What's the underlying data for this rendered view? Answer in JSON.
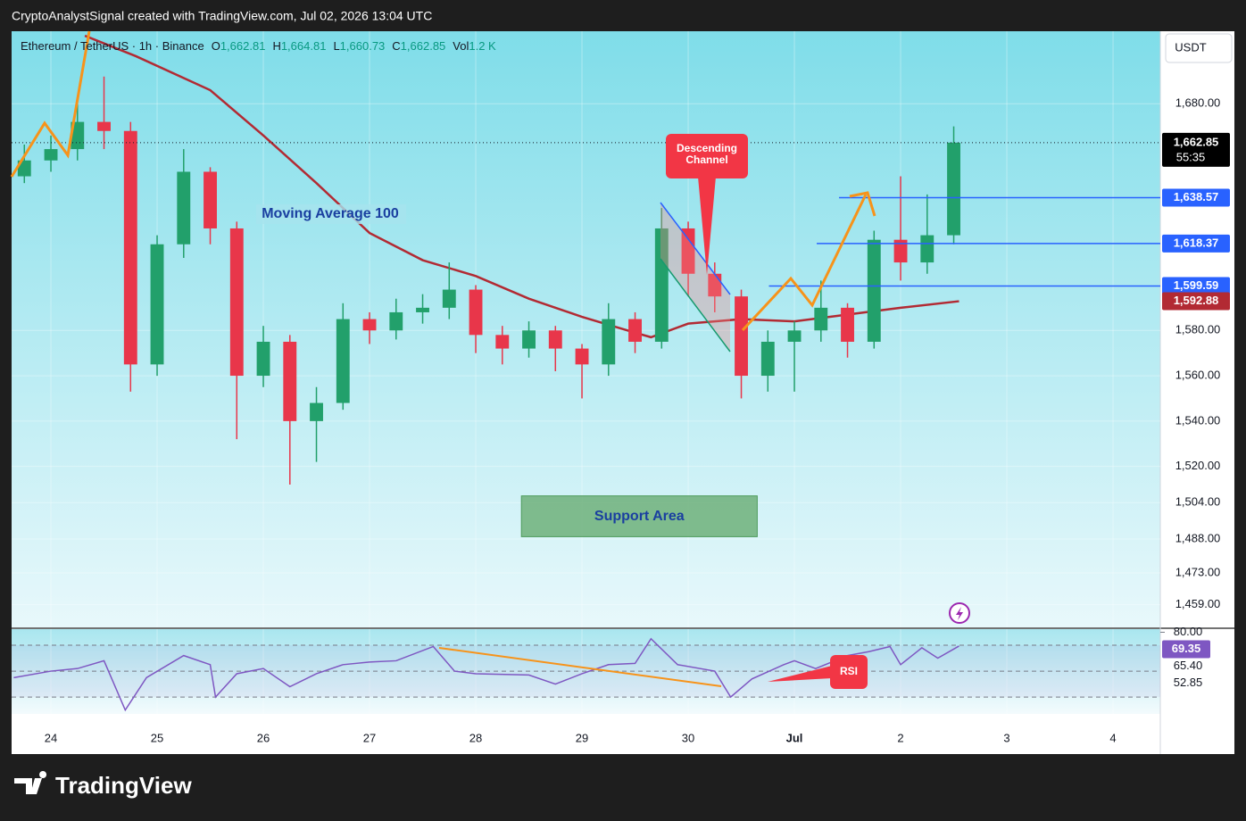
{
  "header": "CryptoAnalystSignal created with TradingView.com, Jul 02, 2026 13:04 UTC",
  "currency_button": "USDT",
  "brand": "TradingView",
  "chart_data": {
    "type": "candlestick",
    "legend": {
      "symbol": "Ethereum / TetherUS · 1h · Binance",
      "fields": [
        {
          "key": "O",
          "value": "1,662.81"
        },
        {
          "key": "H",
          "value": "1,664.81"
        },
        {
          "key": "L",
          "value": "1,660.73"
        },
        {
          "key": "C",
          "value": "1,662.85"
        },
        {
          "key": "Vol",
          "value": "1.2 K"
        }
      ]
    },
    "x": [
      -0.25,
      0,
      0.25,
      0.5,
      0.75,
      1,
      1.25,
      1.5,
      1.75,
      2,
      2.25,
      2.5,
      2.75,
      3,
      3.25,
      3.5,
      3.75,
      4,
      4.25,
      4.5,
      4.75,
      5,
      5.25,
      5.5,
      5.75,
      6,
      6.25,
      6.5,
      6.75,
      7,
      7.25,
      7.5,
      7.75,
      8,
      8.25,
      8.5
    ],
    "open": [
      1648,
      1655,
      1660,
      1672,
      1668,
      1565,
      1618,
      1650,
      1625,
      1560,
      1575,
      1540,
      1548,
      1585,
      1580,
      1588,
      1590,
      1598,
      1578,
      1572,
      1580,
      1572,
      1565,
      1585,
      1575,
      1625,
      1605,
      1595,
      1560,
      1575,
      1580,
      1590,
      1575,
      1620,
      1610,
      1622
    ],
    "high": [
      1662,
      1666,
      1680,
      1692,
      1672,
      1622,
      1660,
      1652,
      1628,
      1582,
      1578,
      1555,
      1592,
      1588,
      1594,
      1596,
      1610,
      1600,
      1582,
      1584,
      1582,
      1574,
      1592,
      1588,
      1634,
      1628,
      1610,
      1598,
      1580,
      1584,
      1602,
      1592,
      1624,
      1648,
      1640,
      1670
    ],
    "low": [
      1645,
      1650,
      1655,
      1660,
      1553,
      1560,
      1612,
      1618,
      1532,
      1555,
      1512,
      1522,
      1545,
      1574,
      1576,
      1583,
      1585,
      1570,
      1565,
      1568,
      1562,
      1550,
      1560,
      1570,
      1572,
      1595,
      1588,
      1550,
      1553,
      1553,
      1575,
      1568,
      1572,
      1602,
      1605,
      1618
    ],
    "close": [
      1655,
      1660,
      1672,
      1668,
      1565,
      1618,
      1650,
      1625,
      1560,
      1575,
      1540,
      1548,
      1585,
      1580,
      1588,
      1590,
      1598,
      1578,
      1572,
      1580,
      1572,
      1565,
      1585,
      1575,
      1625,
      1605,
      1595,
      1560,
      1575,
      1580,
      1590,
      1575,
      1620,
      1610,
      1622,
      1662.85
    ],
    "up_color": "#22a06b",
    "down_color": "#e8364a",
    "xlim": [
      -0.37,
      10.445
    ],
    "xticks": [
      {
        "value": 0,
        "label": "24"
      },
      {
        "value": 1,
        "label": "25"
      },
      {
        "value": 2,
        "label": "26"
      },
      {
        "value": 3,
        "label": "27"
      },
      {
        "value": 4,
        "label": "28"
      },
      {
        "value": 5,
        "label": "29"
      },
      {
        "value": 6,
        "label": "30"
      },
      {
        "value": 7,
        "label": "Jul"
      },
      {
        "value": 8,
        "label": "2"
      },
      {
        "value": 9,
        "label": "3"
      },
      {
        "value": 10,
        "label": "4"
      }
    ],
    "ylim": [
      1449,
      1712
    ],
    "yticks": [
      {
        "value": 1680,
        "label": "1,680.00"
      },
      {
        "value": 1580,
        "label": "1,580.00"
      },
      {
        "value": 1560,
        "label": "1,560.00"
      },
      {
        "value": 1540,
        "label": "1,540.00"
      },
      {
        "value": 1520,
        "label": "1,520.00"
      },
      {
        "value": 1504,
        "label": "1,504.00"
      },
      {
        "value": 1488,
        "label": "1,488.00"
      },
      {
        "value": 1473,
        "label": "1,473.00"
      },
      {
        "value": 1459,
        "label": "1,459.00"
      }
    ],
    "grid": true,
    "last_price": {
      "value": 1662.85,
      "label": "1,662.85",
      "countdown": "55:35"
    },
    "moving_average": {
      "name": "Moving Average 100",
      "color": "#b22a33",
      "x": [
        0.32,
        0.8,
        1.5,
        2,
        2.5,
        3,
        3.5,
        4,
        4.5,
        5,
        5.5,
        5.65,
        6,
        6.5,
        7,
        7.5,
        8,
        8.55
      ],
      "values": [
        1710,
        1701,
        1686,
        1666,
        1645,
        1623,
        1611,
        1604,
        1594,
        1586,
        1579,
        1577,
        1583,
        1585,
        1584,
        1587,
        1590,
        1592.88
      ],
      "value_label": "1,592.88"
    },
    "levels": [
      {
        "value": 1638.57,
        "label": "1,638.57",
        "x_start": 7.42
      },
      {
        "value": 1618.37,
        "label": "1,618.37",
        "x_start": 7.21
      },
      {
        "value": 1599.59,
        "label": "1,599.59",
        "x_start": 6.76
      }
    ],
    "level_color": "#2962ff",
    "support_area": {
      "label": "Support Area",
      "x": [
        4.43,
        6.65
      ],
      "y": [
        1489,
        1507
      ],
      "color": "#6fb07a"
    },
    "channel_callout": [
      "Descending",
      "Channel"
    ],
    "rsi": {
      "name": "RSI",
      "color": "#7e57c2",
      "x": [
        -0.35,
        0,
        0.25,
        0.5,
        0.7,
        0.9,
        1.25,
        1.5,
        1.55,
        1.75,
        2,
        2.25,
        2.5,
        2.75,
        3,
        3.25,
        3.6,
        3.8,
        4,
        4.5,
        4.75,
        5,
        5.25,
        5.5,
        5.65,
        5.9,
        6.25,
        6.4,
        6.6,
        6.9,
        7,
        7.2,
        7.5,
        7.7,
        7.9,
        8,
        8.2,
        8.35,
        8.55
      ],
      "values": [
        45,
        50,
        52,
        58,
        20,
        45,
        62,
        55,
        30,
        48,
        52,
        38,
        48,
        55,
        57,
        58,
        69,
        50,
        48,
        47,
        40,
        48,
        55,
        56,
        75,
        55,
        50,
        30,
        44,
        55,
        58,
        52,
        62,
        65,
        69,
        55,
        68,
        60,
        69.35
      ],
      "ylim": [
        17,
        82.4
      ],
      "yticks": [
        {
          "value": 80,
          "label": "80.00"
        }
      ],
      "bands": [
        30,
        50,
        70
      ],
      "last": {
        "value": 69.35,
        "label": "69.35"
      },
      "axis_labels": [
        {
          "value": 65.4,
          "label": "65.40"
        },
        {
          "value": 52.85,
          "label": "52.85"
        }
      ]
    }
  }
}
